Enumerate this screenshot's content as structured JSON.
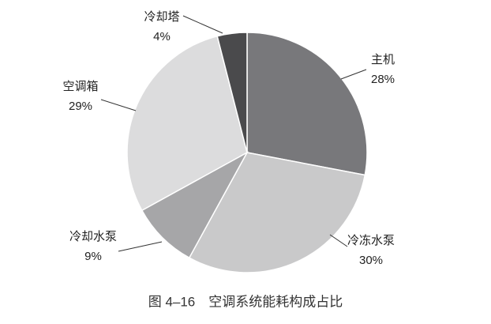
{
  "chart_data": {
    "type": "pie",
    "caption": "图 4–16　空调系统能耗构成占比",
    "categories": [
      "主机",
      "冷冻水泵",
      "冷却水泵",
      "空调箱",
      "冷却塔"
    ],
    "values": [
      28,
      30,
      9,
      29,
      4
    ],
    "value_labels": [
      "28%",
      "30%",
      "9%",
      "29%",
      "4%"
    ],
    "colors": [
      "#78787b",
      "#c9c9ca",
      "#a6a6a8",
      "#dcdcdd",
      "#4a4a4c"
    ],
    "start_angle": 0,
    "direction": "clockwise"
  }
}
